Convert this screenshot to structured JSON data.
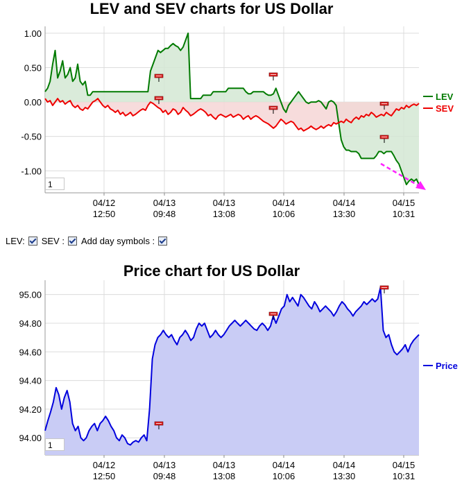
{
  "colors": {
    "lev": "#007a00",
    "lev_fill": "#d3e8d3",
    "sev": "#ee0000",
    "sev_fill": "#f6d6d6",
    "overlap_fill": "#c8b4a4",
    "price": "#0000dd",
    "price_fill": "#c9ccf5",
    "grid": "#dcdcdc",
    "day_symbol": "#dd2222",
    "trend_arrow": "#ff22ff"
  },
  "icons": {
    "day_symbol": "red-flag-marker-icon",
    "trend": "dashed-arrow-icon"
  },
  "controls": {
    "lev_label": "LEV:",
    "sev_label": "SEV :",
    "day_label": "Add day symbols :",
    "lev_checked": true,
    "sev_checked": true,
    "day_checked": true
  },
  "chart_data": [
    {
      "type": "line",
      "title": "LEV and SEV charts for US Dollar",
      "xlabel": "",
      "ylabel": "",
      "ylim": [
        -1.32,
        1.1
      ],
      "yticks": [
        "1.00",
        "0.50",
        "0.00",
        "-0.50",
        "-1.00"
      ],
      "ytick_values": [
        1.0,
        0.5,
        0.0,
        -0.5,
        -1.0
      ],
      "xticks": [
        {
          "date": "04/12",
          "time": "12:50"
        },
        {
          "date": "04/13",
          "time": "09:48"
        },
        {
          "date": "04/13",
          "time": "13:08"
        },
        {
          "date": "04/14",
          "time": "10:06"
        },
        {
          "date": "04/14",
          "time": "13:30"
        },
        {
          "date": "04/15",
          "time": "10:31"
        }
      ],
      "grid": true,
      "legend_position": "right",
      "zoom_value": "1",
      "series": [
        {
          "name": "LEV",
          "values": [
            0.15,
            0.2,
            0.3,
            0.55,
            0.75,
            0.35,
            0.45,
            0.6,
            0.35,
            0.4,
            0.5,
            0.3,
            0.35,
            0.55,
            0.3,
            0.25,
            0.3,
            0.1,
            0.1,
            0.15,
            0.15,
            0.15,
            0.15,
            0.15,
            0.15,
            0.15,
            0.15,
            0.15,
            0.15,
            0.15,
            0.15,
            0.15,
            0.15,
            0.15,
            0.15,
            0.15,
            0.15,
            0.15,
            0.15,
            0.15,
            0.15,
            0.15,
            0.45,
            0.55,
            0.65,
            0.75,
            0.72,
            0.75,
            0.78,
            0.78,
            0.82,
            0.85,
            0.82,
            0.8,
            0.75,
            0.8,
            0.9,
            1.0,
            0.05,
            0.05,
            0.05,
            0.05,
            0.05,
            0.1,
            0.1,
            0.1,
            0.1,
            0.15,
            0.15,
            0.15,
            0.15,
            0.15,
            0.15,
            0.2,
            0.2,
            0.2,
            0.2,
            0.2,
            0.2,
            0.2,
            0.15,
            0.12,
            0.12,
            0.15,
            0.15,
            0.15,
            0.15,
            0.15,
            0.12,
            0.1,
            0.1,
            0.12,
            0.2,
            0.1,
            0.0,
            -0.1,
            -0.15,
            -0.05,
            0.0,
            0.05,
            0.1,
            0.15,
            0.1,
            0.05,
            0.0,
            -0.02,
            0.0,
            0.0,
            0.0,
            0.02,
            0.0,
            -0.05,
            -0.1,
            0.0,
            0.02,
            0.0,
            -0.05,
            -0.3,
            -0.55,
            -0.65,
            -0.7,
            -0.7,
            -0.72,
            -0.72,
            -0.72,
            -0.75,
            -0.82,
            -0.82,
            -0.82,
            -0.82,
            -0.82,
            -0.82,
            -0.78,
            -0.72,
            -0.72,
            -0.75,
            -0.72,
            -0.72,
            -0.72,
            -0.78,
            -0.85,
            -0.9,
            -1.0,
            -1.1,
            -1.2,
            -1.15,
            -1.12,
            -1.15,
            -1.12,
            -1.2
          ]
        },
        {
          "name": "SEV",
          "values": [
            0.05,
            0.0,
            0.02,
            -0.05,
            0.0,
            0.05,
            0.0,
            0.02,
            -0.03,
            0.0,
            0.02,
            -0.05,
            -0.08,
            -0.05,
            -0.1,
            -0.12,
            -0.08,
            -0.1,
            -0.05,
            0.0,
            0.02,
            0.05,
            0.0,
            -0.05,
            -0.08,
            -0.05,
            -0.1,
            -0.12,
            -0.15,
            -0.12,
            -0.18,
            -0.15,
            -0.2,
            -0.18,
            -0.15,
            -0.2,
            -0.18,
            -0.15,
            -0.12,
            -0.1,
            -0.12,
            -0.05,
            0.0,
            -0.02,
            -0.05,
            -0.08,
            -0.1,
            -0.15,
            -0.12,
            -0.18,
            -0.15,
            -0.1,
            -0.12,
            -0.18,
            -0.15,
            -0.08,
            -0.12,
            -0.15,
            -0.2,
            -0.18,
            -0.15,
            -0.12,
            -0.1,
            -0.12,
            -0.15,
            -0.2,
            -0.18,
            -0.22,
            -0.25,
            -0.2,
            -0.18,
            -0.2,
            -0.22,
            -0.2,
            -0.18,
            -0.22,
            -0.2,
            -0.18,
            -0.2,
            -0.25,
            -0.22,
            -0.2,
            -0.25,
            -0.22,
            -0.2,
            -0.22,
            -0.25,
            -0.28,
            -0.3,
            -0.32,
            -0.35,
            -0.38,
            -0.35,
            -0.3,
            -0.25,
            -0.28,
            -0.32,
            -0.3,
            -0.28,
            -0.3,
            -0.35,
            -0.4,
            -0.38,
            -0.42,
            -0.4,
            -0.38,
            -0.35,
            -0.38,
            -0.4,
            -0.38,
            -0.35,
            -0.38,
            -0.35,
            -0.33,
            -0.35,
            -0.3,
            -0.32,
            -0.3,
            -0.28,
            -0.3,
            -0.25,
            -0.28,
            -0.3,
            -0.25,
            -0.22,
            -0.25,
            -0.2,
            -0.22,
            -0.18,
            -0.2,
            -0.15,
            -0.18,
            -0.22,
            -0.2,
            -0.18,
            -0.2,
            -0.15,
            -0.18,
            -0.2,
            -0.15,
            -0.1,
            -0.12,
            -0.08,
            -0.1,
            -0.05,
            -0.08,
            -0.05,
            -0.03,
            -0.05,
            -0.02
          ]
        }
      ]
    },
    {
      "type": "area",
      "title": "Price chart for US Dollar",
      "xlabel": "",
      "ylabel": "",
      "ylim": [
        93.88,
        95.1
      ],
      "yticks": [
        "95.00",
        "94.80",
        "94.60",
        "94.40",
        "94.20",
        "94.00"
      ],
      "ytick_values": [
        95.0,
        94.8,
        94.6,
        94.4,
        94.2,
        94.0
      ],
      "xticks": [
        {
          "date": "04/12",
          "time": "12:50"
        },
        {
          "date": "04/13",
          "time": "09:48"
        },
        {
          "date": "04/13",
          "time": "13:08"
        },
        {
          "date": "04/14",
          "time": "10:06"
        },
        {
          "date": "04/14",
          "time": "13:30"
        },
        {
          "date": "04/15",
          "time": "10:31"
        }
      ],
      "grid": true,
      "legend_position": "right",
      "zoom_value": "1",
      "series": [
        {
          "name": "Price",
          "values": [
            94.05,
            94.12,
            94.18,
            94.25,
            94.35,
            94.3,
            94.2,
            94.28,
            94.33,
            94.25,
            94.1,
            94.05,
            94.08,
            94.0,
            93.98,
            94.0,
            94.05,
            94.08,
            94.1,
            94.05,
            94.1,
            94.12,
            94.15,
            94.12,
            94.08,
            94.05,
            94.0,
            93.98,
            94.02,
            94.0,
            93.96,
            93.95,
            93.97,
            93.98,
            93.97,
            94.0,
            94.02,
            93.98,
            94.2,
            94.55,
            94.65,
            94.7,
            94.72,
            94.75,
            94.72,
            94.7,
            94.72,
            94.68,
            94.65,
            94.7,
            94.72,
            94.75,
            94.72,
            94.68,
            94.7,
            94.76,
            94.8,
            94.78,
            94.8,
            94.75,
            94.7,
            94.72,
            94.75,
            94.72,
            94.7,
            94.72,
            94.75,
            94.78,
            94.8,
            94.82,
            94.8,
            94.78,
            94.8,
            94.82,
            94.8,
            94.78,
            94.76,
            94.75,
            94.78,
            94.8,
            94.78,
            94.75,
            94.78,
            94.85,
            94.8,
            94.85,
            94.9,
            94.92,
            95.0,
            94.95,
            94.98,
            94.95,
            94.92,
            95.0,
            94.98,
            94.95,
            94.92,
            94.9,
            94.95,
            94.92,
            94.88,
            94.9,
            94.92,
            94.9,
            94.88,
            94.85,
            94.88,
            94.92,
            94.95,
            94.93,
            94.9,
            94.88,
            94.85,
            94.88,
            94.9,
            94.92,
            94.95,
            94.93,
            94.95,
            94.97,
            94.95,
            94.97,
            95.05,
            94.75,
            94.7,
            94.72,
            94.65,
            94.6,
            94.58,
            94.6,
            94.62,
            94.65,
            94.6,
            94.65,
            94.68,
            94.7,
            94.72
          ]
        }
      ]
    }
  ]
}
